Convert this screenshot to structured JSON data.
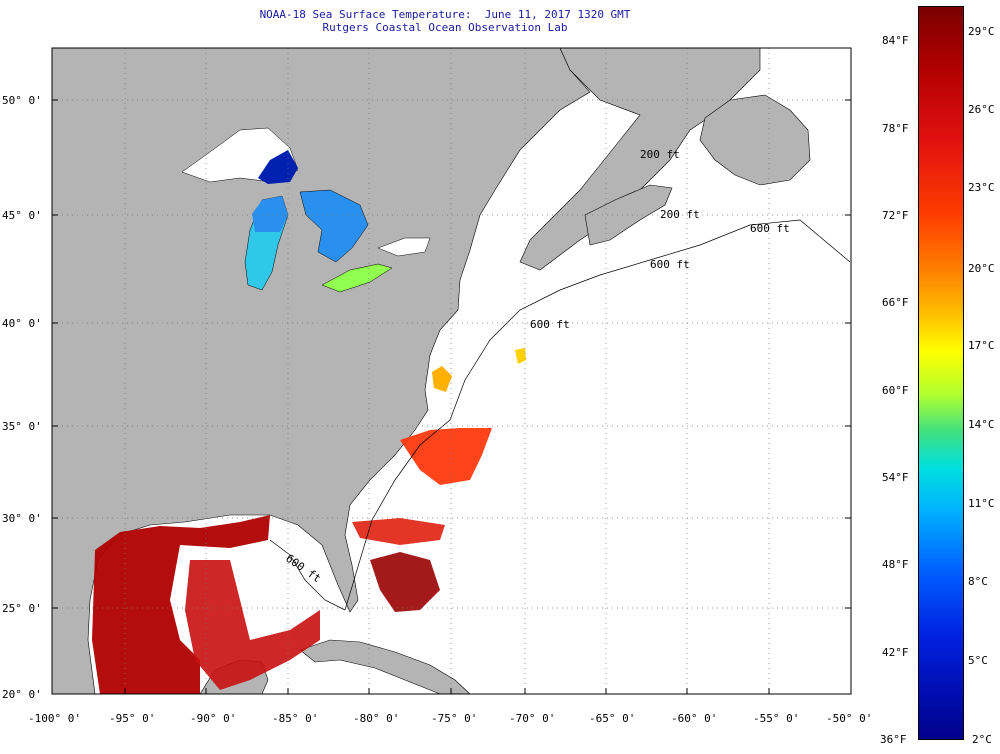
{
  "title_line1": "NOAA-18 Sea Surface Temperature:  June 11, 2017 1320 GMT",
  "title_line2": "Rutgers Coastal Ocean Observation Lab",
  "lat_labels": [
    "50° 0'",
    "45° 0'",
    "40° 0'",
    "35° 0'",
    "30° 0'",
    "25° 0'",
    "20° 0'"
  ],
  "lon_labels": [
    "-100° 0'",
    "-95° 0'",
    "-90° 0'",
    "-85° 0'",
    "-80° 0'",
    "-75° 0'",
    "-70° 0'",
    "-65° 0'",
    "-60° 0'",
    "-55° 0'",
    "-50° 0'"
  ],
  "isobath_labels": [
    "200 ft",
    "200 ft",
    "600 ft",
    "600 ft",
    "600 ft",
    "600 ft"
  ],
  "colorbar_f": [
    "84°F",
    "78°F",
    "72°F",
    "66°F",
    "60°F",
    "54°F",
    "48°F",
    "42°F",
    "36°F"
  ],
  "colorbar_c": [
    "29°C",
    "26°C",
    "23°C",
    "20°C",
    "17°C",
    "14°C",
    "11°C",
    "8°C",
    "5°C",
    "2°C"
  ],
  "colors": {
    "land": "#b4b4b4",
    "ocean": "#ffffff",
    "title": "#1a1aa0",
    "hot": "#b00000",
    "warm": "#ff3a00",
    "cold": "#0020e0"
  }
}
